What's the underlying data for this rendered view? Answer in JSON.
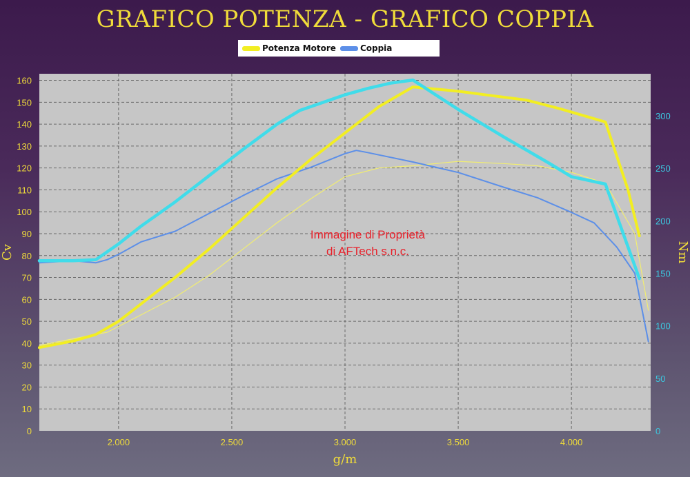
{
  "chart_data": {
    "type": "line",
    "title": "GRAFICO POTENZA - GRAFICO COPPIA",
    "xlabel": "g/m",
    "ylabel_left": "Cv",
    "ylabel_right": "Nm",
    "watermark": [
      "Immagine di Proprietà",
      "di AFTech s.n.c."
    ],
    "xlim": [
      1650,
      4350
    ],
    "ylim_left": [
      0,
      163
    ],
    "ylim_right": [
      0,
      340
    ],
    "x_ticks": [
      2000,
      2500,
      3000,
      3500,
      4000
    ],
    "x_tick_labels": [
      "2.000",
      "2.500",
      "3.000",
      "3.500",
      "4.000"
    ],
    "y_left_ticks": [
      0,
      10,
      20,
      30,
      40,
      50,
      60,
      70,
      80,
      90,
      100,
      110,
      120,
      130,
      140,
      150,
      160
    ],
    "y_right_ticks": [
      0,
      50,
      100,
      150,
      200,
      250,
      300
    ],
    "grid": true,
    "legend_position": "top-center",
    "legend": [
      {
        "label": "Potenza Motore",
        "color": "#f2ee22"
      },
      {
        "label": "Coppia",
        "color": "#5c8fe8"
      }
    ],
    "series": [
      {
        "name": "Potenza Motore",
        "axis": "left",
        "color": "#f2ee22",
        "width": 4,
        "x": [
          1650,
          1800,
          1900,
          2000,
          2100,
          2250,
          2400,
          2550,
          2700,
          2850,
          3000,
          3150,
          3300,
          3400,
          3500,
          3650,
          3800,
          3950,
          4150,
          4250,
          4300
        ],
        "y": [
          38,
          41,
          44,
          50,
          58,
          70,
          83,
          97,
          111,
          124,
          136,
          148,
          157,
          156,
          155,
          153,
          151,
          147,
          141,
          110,
          89
        ]
      },
      {
        "name": "Coppia",
        "axis": "right",
        "color": "#40dcea",
        "width": 4.5,
        "x": [
          1650,
          1800,
          1900,
          2000,
          2100,
          2250,
          2400,
          2550,
          2700,
          2800,
          3000,
          3100,
          3200,
          3300,
          3500,
          3700,
          3900,
          4000,
          4150,
          4250,
          4300
        ],
        "y": [
          162,
          162,
          163,
          178,
          195,
          218,
          243,
          268,
          292,
          305,
          320,
          326,
          331,
          334,
          306,
          280,
          255,
          242,
          235,
          175,
          145
        ]
      },
      {
        "name": "",
        "axis": "right",
        "color": "#5c8fe8",
        "width": 2,
        "x": [
          1650,
          1800,
          1900,
          1950,
          2000,
          2100,
          2250,
          2400,
          2550,
          2700,
          2850,
          3000,
          3050,
          3100,
          3300,
          3500,
          3700,
          3850,
          4000,
          4100,
          4200,
          4280,
          4340
        ],
        "y": [
          160,
          162,
          160,
          163,
          168,
          180,
          190,
          207,
          224,
          240,
          251,
          264,
          267,
          265,
          256,
          246,
          232,
          222,
          208,
          198,
          175,
          150,
          85
        ]
      },
      {
        "name": "",
        "axis": "left",
        "color": "#f2ee70",
        "width": 1.2,
        "x": [
          1650,
          1800,
          1950,
          2100,
          2250,
          2400,
          2550,
          2700,
          2850,
          3000,
          3150,
          3300,
          3500,
          3700,
          3850,
          4000,
          4150,
          4280,
          4340
        ],
        "y": [
          39,
          42,
          45,
          53,
          61,
          71,
          83,
          95,
          106,
          116,
          120,
          121,
          123,
          122,
          121,
          118,
          113,
          90,
          55
        ]
      }
    ]
  }
}
